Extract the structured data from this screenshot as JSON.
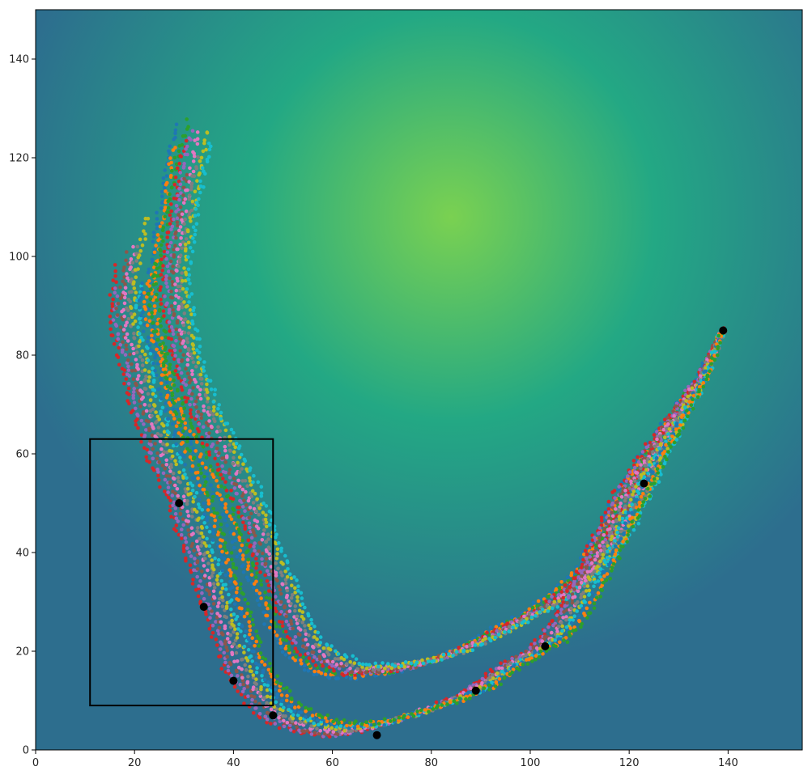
{
  "chart_data": {
    "type": "scatter",
    "title": "",
    "xlabel": "",
    "ylabel": "",
    "xlim": [
      0,
      155
    ],
    "ylim": [
      0,
      150
    ],
    "x_ticks": [
      0,
      20,
      40,
      60,
      80,
      100,
      120,
      140
    ],
    "y_ticks": [
      0,
      20,
      40,
      60,
      80,
      100,
      120,
      140
    ],
    "x_tick_labels": [
      "0",
      "20",
      "40",
      "60",
      "80",
      "100",
      "120",
      "140"
    ],
    "y_tick_labels": [
      "0",
      "20",
      "40",
      "60",
      "80",
      "100",
      "120",
      "140"
    ],
    "grid": false,
    "legend": "none",
    "background": {
      "kind": "heatmap",
      "colormap": "viridis",
      "peak": [
        84,
        108
      ],
      "low_color": "#2d6e8e",
      "mid_color": "#23a884",
      "high_color": "#7ad151"
    },
    "rectangle": {
      "x0": 11,
      "y0": 9,
      "x1": 48,
      "y1": 63,
      "color": "#000000"
    },
    "key_points": [
      [
        139,
        85
      ],
      [
        123,
        54
      ],
      [
        103,
        21
      ],
      [
        89,
        12
      ],
      [
        69,
        3
      ],
      [
        48,
        7
      ],
      [
        40,
        14
      ],
      [
        34,
        29
      ],
      [
        29,
        50
      ]
    ],
    "series_colors": [
      "#1f77b4",
      "#ff7f0e",
      "#2ca02c",
      "#d62728",
      "#9467bd",
      "#8c564b",
      "#e377c2",
      "#7f7f7f",
      "#bcbd22",
      "#17becf"
    ],
    "upper_path": [
      [
        139,
        85
      ],
      [
        135,
        76
      ],
      [
        130,
        68
      ],
      [
        125,
        60
      ],
      [
        121,
        52
      ],
      [
        117,
        44
      ],
      [
        113,
        38
      ],
      [
        108,
        33
      ],
      [
        103,
        29
      ],
      [
        97,
        26
      ],
      [
        90,
        22
      ],
      [
        83,
        19
      ],
      [
        76,
        17
      ],
      [
        69,
        16
      ],
      [
        63,
        16
      ],
      [
        58,
        18
      ],
      [
        54,
        21
      ],
      [
        51,
        26
      ],
      [
        49,
        32
      ],
      [
        46,
        38
      ],
      [
        44,
        44
      ],
      [
        42,
        50
      ],
      [
        39,
        56
      ],
      [
        36,
        62
      ],
      [
        33,
        68
      ],
      [
        31,
        74
      ],
      [
        29,
        80
      ],
      [
        28,
        86
      ],
      [
        27,
        92
      ],
      [
        27,
        98
      ],
      [
        28,
        104
      ],
      [
        29,
        110
      ],
      [
        30,
        116
      ],
      [
        31,
        122
      ],
      [
        33,
        128
      ]
    ],
    "lower_path": [
      [
        139,
        85
      ],
      [
        135,
        76
      ],
      [
        130,
        68
      ],
      [
        125,
        60
      ],
      [
        121,
        53
      ],
      [
        118,
        47
      ],
      [
        114,
        38
      ],
      [
        110,
        30
      ],
      [
        106,
        24
      ],
      [
        103,
        21
      ],
      [
        96,
        17
      ],
      [
        89,
        12
      ],
      [
        82,
        9
      ],
      [
        76,
        7
      ],
      [
        69,
        5
      ],
      [
        62,
        4
      ],
      [
        56,
        5
      ],
      [
        51,
        7
      ],
      [
        48,
        9
      ],
      [
        45,
        13
      ],
      [
        42,
        18
      ],
      [
        40,
        24
      ],
      [
        38,
        30
      ],
      [
        36,
        36
      ],
      [
        34,
        42
      ],
      [
        32,
        48
      ],
      [
        30,
        54
      ],
      [
        27,
        60
      ],
      [
        25,
        66
      ],
      [
        23,
        72
      ],
      [
        22,
        78
      ],
      [
        20,
        84
      ],
      [
        19,
        90
      ],
      [
        20,
        96
      ],
      [
        21,
        102
      ],
      [
        22,
        108
      ]
    ]
  }
}
